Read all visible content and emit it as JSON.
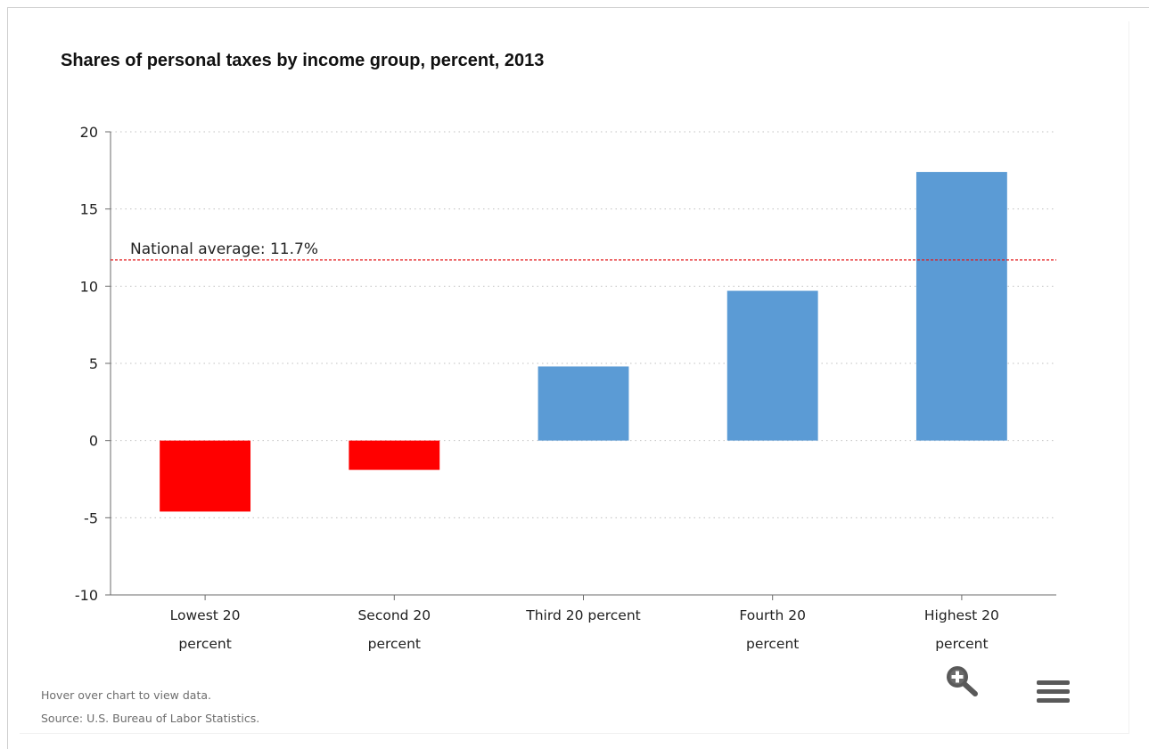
{
  "chart_data": {
    "type": "bar",
    "title": "Shares of personal taxes by income group, percent, 2013",
    "xlabel": "",
    "ylabel": "",
    "ylim": [
      -10,
      20
    ],
    "yticks": [
      "20",
      "15",
      "10",
      "5",
      "0",
      "-5",
      "-10"
    ],
    "categories": [
      [
        "Lowest 20",
        "percent"
      ],
      [
        "Second 20",
        "percent"
      ],
      [
        "Third 20 percent"
      ],
      [
        "Fourth 20",
        "percent"
      ],
      [
        "Highest 20",
        "percent"
      ]
    ],
    "values": [
      -4.6,
      -1.9,
      4.8,
      9.7,
      17.4
    ],
    "grid": true,
    "colors": {
      "positive": "#5b9bd5",
      "negative": "#ff0000",
      "reference_line": "#e31a1c",
      "grid": "#c0c0c0",
      "axis": "#6b6b6b"
    },
    "reference_line": {
      "value": 11.7,
      "label": "National average: 11.7%"
    }
  },
  "footer": {
    "hint": "Hover over chart to view data.",
    "source": "Source: U.S. Bureau of Labor Statistics."
  },
  "controls": {
    "zoom_icon": "zoom-in-magnifier-icon",
    "menu_icon": "hamburger-menu-icon",
    "icon_color": "#595959"
  }
}
